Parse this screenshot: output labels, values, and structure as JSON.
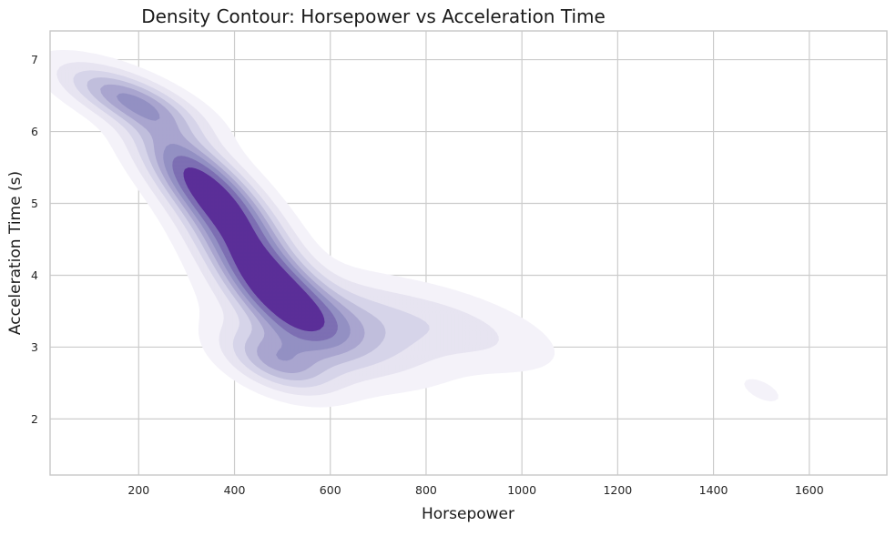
{
  "chart_data": {
    "type": "density-contour",
    "title": "Density Contour: Horsepower vs Acceleration Time",
    "xlabel": "Horsepower",
    "ylabel": "Acceleration Time (s)",
    "xlim": [
      15,
      1762
    ],
    "ylim": [
      1.22,
      7.4
    ],
    "xticks": [
      200,
      400,
      600,
      800,
      1000,
      1200,
      1400,
      1600
    ],
    "yticks": [
      2,
      3,
      4,
      5,
      6,
      7
    ],
    "grid": true,
    "colormap": [
      "#f4f2f9",
      "#e7e4f1",
      "#d6d4e9",
      "#c0bedc",
      "#a9a5cf",
      "#9390c3",
      "#7d6fb3",
      "#5b2e98"
    ],
    "density_peaks": [
      {
        "x": 180,
        "y": 6.45,
        "sx": 95,
        "sy": 0.32,
        "rho": -0.7,
        "weight": 0.55
      },
      {
        "x": 350,
        "y": 5.15,
        "sx": 95,
        "sy": 0.6,
        "rho": -0.78,
        "weight": 1.0
      },
      {
        "x": 470,
        "y": 3.9,
        "sx": 90,
        "sy": 0.55,
        "rho": -0.75,
        "weight": 0.9
      },
      {
        "x": 600,
        "y": 3.3,
        "sx": 130,
        "sy": 0.45,
        "rho": -0.5,
        "weight": 0.45
      },
      {
        "x": 490,
        "y": 2.8,
        "sx": 75,
        "sy": 0.3,
        "rho": -0.5,
        "weight": 0.5
      },
      {
        "x": 850,
        "y": 3.3,
        "sx": 140,
        "sy": 0.4,
        "rho": -0.6,
        "weight": 0.2
      },
      {
        "x": 1500,
        "y": 2.4,
        "sx": 35,
        "sy": 0.15,
        "rho": -0.6,
        "weight": 0.1
      }
    ]
  }
}
